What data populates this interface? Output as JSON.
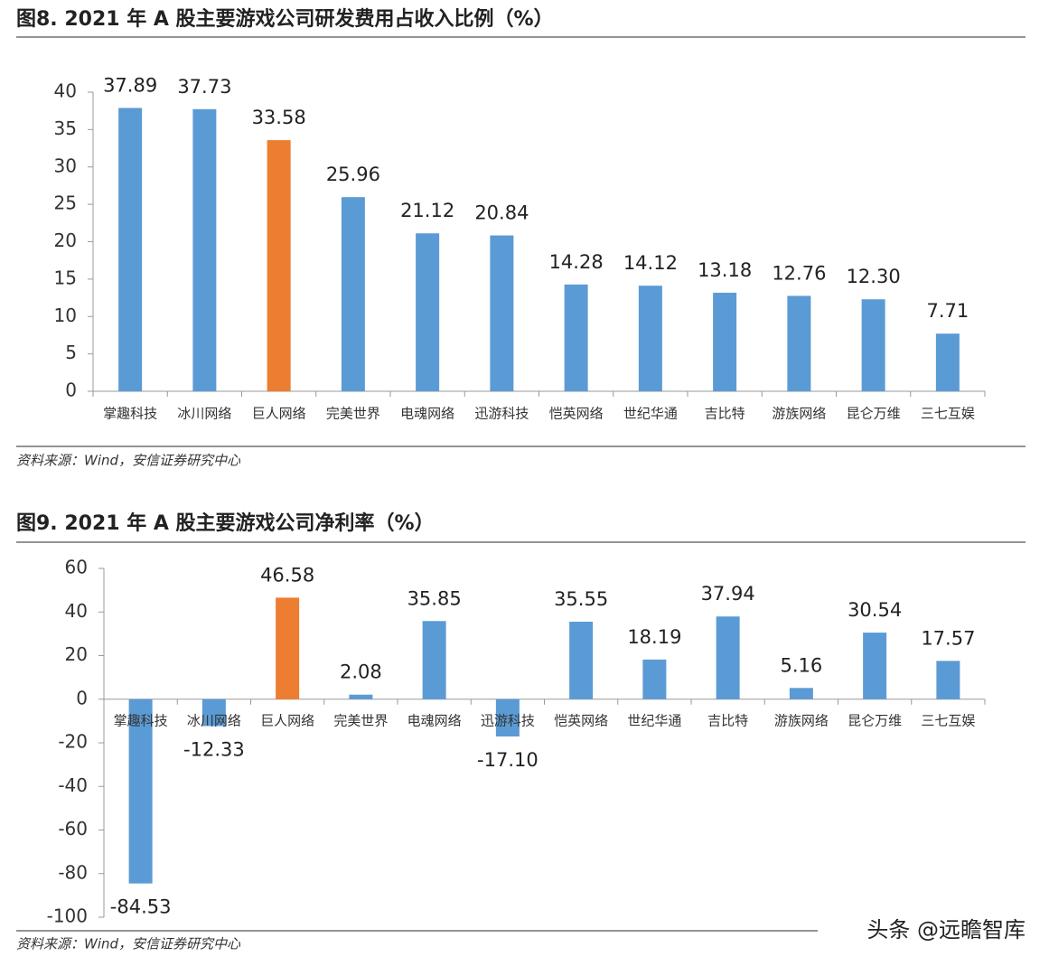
{
  "chart_data": [
    {
      "type": "bar",
      "title": "图8. 2021 年 A 股主要游戏公司研发费用占收入比例（%）",
      "categories": [
        "掌趣科技",
        "冰川网络",
        "巨人网络",
        "完美世界",
        "电魂网络",
        "迅游科技",
        "恺英网络",
        "世纪华通",
        "吉比特",
        "游族网络",
        "昆仑万维",
        "三七互娱"
      ],
      "values": [
        37.89,
        37.73,
        33.58,
        25.96,
        21.12,
        20.84,
        14.28,
        14.12,
        13.18,
        12.76,
        12.3,
        7.71
      ],
      "value_labels": [
        "37.89",
        "37.73",
        "33.58",
        "25.96",
        "21.12",
        "20.84",
        "14.28",
        "14.12",
        "13.18",
        "12.76",
        "12.30",
        "7.71"
      ],
      "colors": [
        "#5b9bd5",
        "#5b9bd5",
        "#ed7d31",
        "#5b9bd5",
        "#5b9bd5",
        "#5b9bd5",
        "#5b9bd5",
        "#5b9bd5",
        "#5b9bd5",
        "#5b9bd5",
        "#5b9bd5",
        "#5b9bd5"
      ],
      "ylim": [
        0,
        40
      ],
      "yticks": [
        0,
        5,
        10,
        15,
        20,
        25,
        30,
        35,
        40
      ],
      "source": "资料来源：Wind，安信证券研究中心"
    },
    {
      "type": "bar",
      "title": "图9. 2021 年 A 股主要游戏公司净利率（%）",
      "categories": [
        "掌趣科技",
        "冰川网络",
        "巨人网络",
        "完美世界",
        "电魂网络",
        "迅游科技",
        "恺英网络",
        "世纪华通",
        "吉比特",
        "游族网络",
        "昆仑万维",
        "三七互娱"
      ],
      "values": [
        -84.53,
        -12.33,
        46.58,
        2.08,
        35.85,
        -17.1,
        35.55,
        18.19,
        37.94,
        5.16,
        30.54,
        17.57
      ],
      "value_labels": [
        "-84.53",
        "-12.33",
        "46.58",
        "2.08",
        "35.85",
        "-17.10",
        "35.55",
        "18.19",
        "37.94",
        "5.16",
        "30.54",
        "17.57"
      ],
      "colors": [
        "#5b9bd5",
        "#5b9bd5",
        "#ed7d31",
        "#5b9bd5",
        "#5b9bd5",
        "#5b9bd5",
        "#5b9bd5",
        "#5b9bd5",
        "#5b9bd5",
        "#5b9bd5",
        "#5b9bd5",
        "#5b9bd5"
      ],
      "ylim": [
        -100,
        60
      ],
      "yticks": [
        -100,
        -80,
        -60,
        -40,
        -20,
        0,
        20,
        40,
        60
      ],
      "source": "资料来源：Wind，安信证券研究中心"
    }
  ],
  "watermark": "头条 @远瞻智库"
}
